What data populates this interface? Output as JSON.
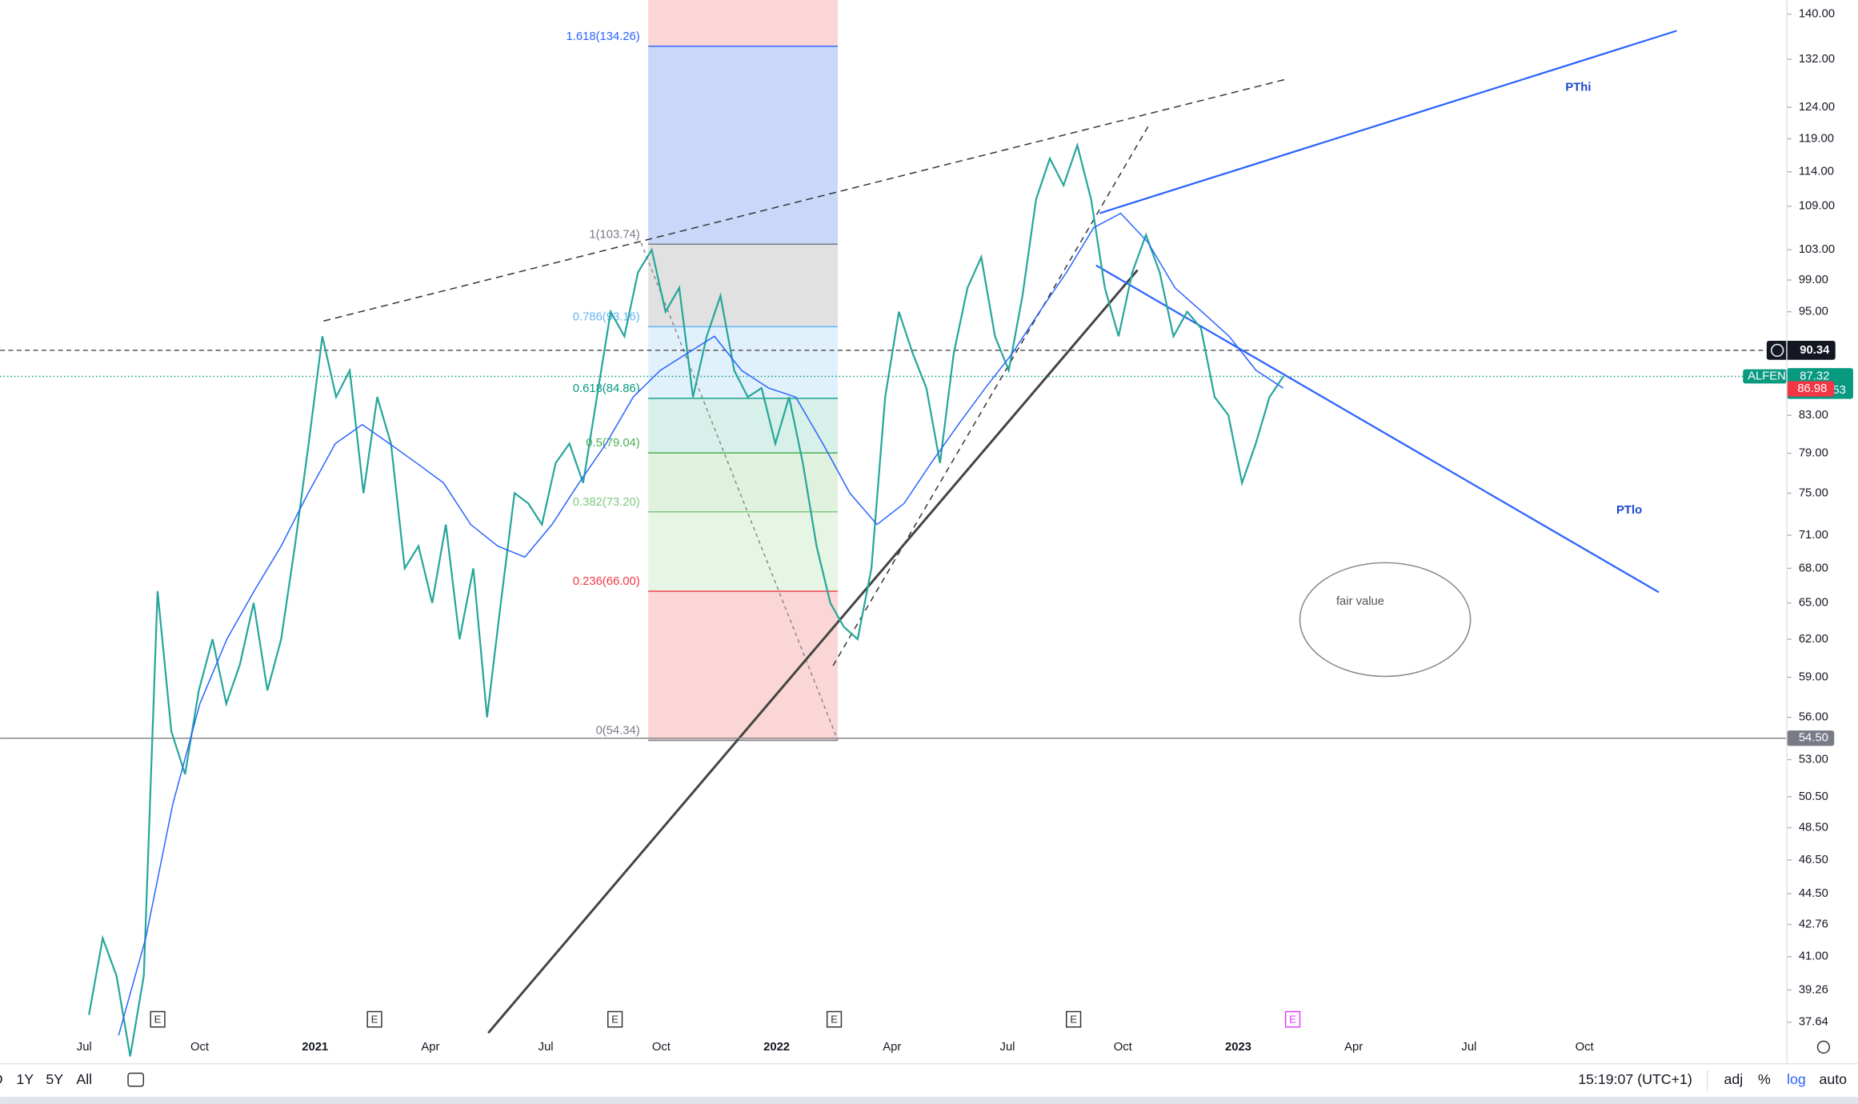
{
  "chart_data": {
    "type": "line",
    "symbol": "ALFEN",
    "log_scale": true,
    "ylim": [
      37.12,
      142.6
    ],
    "yticks": [
      {
        "value": 140,
        "label": "140.00"
      },
      {
        "value": 132,
        "label": "132.00"
      },
      {
        "value": 124,
        "label": "124.00"
      },
      {
        "value": 119,
        "label": "119.00"
      },
      {
        "value": 114,
        "label": "114.00"
      },
      {
        "value": 109,
        "label": "109.00"
      },
      {
        "value": 103,
        "label": "103.00"
      },
      {
        "value": 99,
        "label": "99.00"
      },
      {
        "value": 95,
        "label": "95.00"
      },
      {
        "value": 83,
        "label": "83.00"
      },
      {
        "value": 79,
        "label": "79.00"
      },
      {
        "value": 75,
        "label": "75.00"
      },
      {
        "value": 71,
        "label": "71.00"
      },
      {
        "value": 68,
        "label": "68.00"
      },
      {
        "value": 65,
        "label": "65.00"
      },
      {
        "value": 62,
        "label": "62.00"
      },
      {
        "value": 59,
        "label": "59.00"
      },
      {
        "value": 56,
        "label": "56.00"
      },
      {
        "value": 53,
        "label": "53.00"
      },
      {
        "value": 50.5,
        "label": "50.50"
      },
      {
        "value": 48.5,
        "label": "48.50"
      },
      {
        "value": 46.5,
        "label": "46.50"
      },
      {
        "value": 44.5,
        "label": "44.50"
      },
      42.76,
      {
        "value": 41,
        "label": "41.00"
      },
      39.26,
      37.64
    ],
    "x_labels": [
      "Jul",
      "Oct",
      "2021",
      "Apr",
      "Jul",
      "Oct",
      "2022",
      "Apr",
      "Jul",
      "Oct",
      "2023",
      "Apr",
      "Jul",
      "Oct"
    ],
    "series": [
      {
        "color": "#26a69a",
        "values": [
          38,
          42,
          40,
          36,
          40,
          66,
          55,
          52,
          58,
          62,
          57,
          60,
          65,
          58,
          62,
          70,
          80,
          92,
          85,
          88,
          75,
          85,
          80,
          68,
          70,
          65,
          72,
          62,
          68,
          56,
          65,
          75,
          74,
          72,
          78,
          80,
          76,
          85,
          95,
          92,
          100,
          103,
          95,
          98,
          85,
          92,
          97,
          88,
          85,
          86,
          80,
          85,
          78,
          70,
          65,
          63,
          62,
          68,
          85,
          95,
          90,
          86,
          78,
          90,
          98,
          102,
          92,
          88,
          97,
          110,
          116,
          112,
          118,
          110,
          98,
          92,
          100,
          105,
          100,
          92,
          95,
          93,
          85,
          83,
          76,
          80,
          85,
          87.32
        ]
      },
      {
        "color": "#2962ff",
        "values": [
          37,
          42,
          50,
          57,
          62,
          66,
          70,
          75,
          80,
          82,
          80,
          78,
          76,
          72,
          70,
          69,
          72,
          76,
          80,
          85,
          88,
          90,
          92,
          88,
          86,
          85,
          80,
          75,
          72,
          74,
          78,
          82,
          86,
          90,
          95,
          100,
          106,
          108,
          104,
          98,
          95,
          92,
          88,
          86
        ]
      }
    ],
    "price_lines": [
      90.34,
      87.32,
      86.98,
      {
        "value": 54.5,
        "label": "54.50"
      }
    ],
    "countdown": "01:55:53",
    "fib_levels": [
      {
        "value": 54.34,
        "label": "0(54.34)"
      },
      {
        "value": 66,
        "label": "0.236(66.00)"
      },
      {
        "value": 73.2,
        "label": "0.382(73.20)"
      },
      {
        "value": 79.04,
        "label": "0.5(79.04)"
      },
      {
        "value": 84.86,
        "label": "0.618(84.86)"
      },
      {
        "value": 93.16,
        "label": "0.786(93.16)"
      },
      {
        "value": 103.74,
        "label": "1(103.74)"
      },
      {
        "value": 134.26,
        "label": "1.618(134.26)"
      }
    ],
    "annotations": [
      "PThi",
      "PTlo",
      "fair value"
    ],
    "earnings_marker": "E"
  },
  "toolbar": {
    "ranges": [
      "D",
      "1Y",
      "5Y",
      "All"
    ],
    "clock": "15:19:07 (UTC+1)",
    "options": [
      "adj",
      "%",
      "log",
      "auto"
    ]
  }
}
